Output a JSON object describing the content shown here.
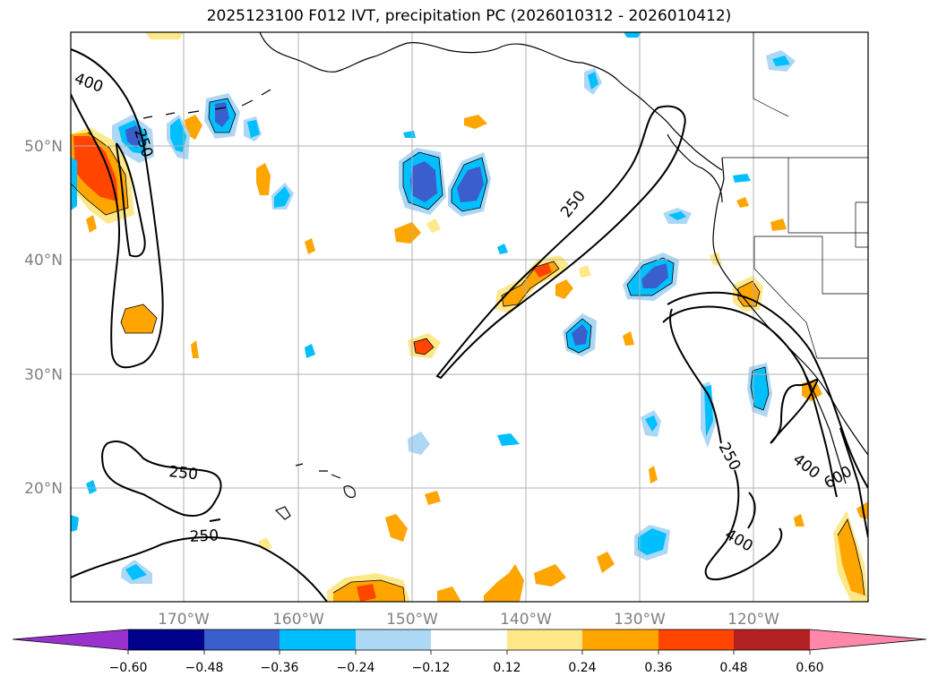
{
  "title": "2025123100 F012 IVT, precipitation PC (2026010312 - 2026010412)",
  "map": {
    "lat_labels": [
      "50°N",
      "40°N",
      "30°N",
      "20°N"
    ],
    "lon_labels": [
      "170°W",
      "160°W",
      "150°W",
      "140°W",
      "130°W",
      "120°W"
    ],
    "ivt_contour_labels": [
      "400",
      "250",
      "250",
      "250",
      "250",
      "250",
      "400",
      "600",
      "400"
    ]
  },
  "colorbar": {
    "tick_labels": [
      "−0.60",
      "−0.48",
      "−0.36",
      "−0.24",
      "−0.12",
      "0.12",
      "0.24",
      "0.36",
      "0.48",
      "0.60"
    ],
    "colors": [
      "#9932cc",
      "#00008b",
      "#3a5fcd",
      "#00bfff",
      "#add8f5",
      "#ffffff",
      "#ffe88a",
      "#ffa500",
      "#ff4500",
      "#b22222",
      "#ff88aa"
    ]
  }
}
